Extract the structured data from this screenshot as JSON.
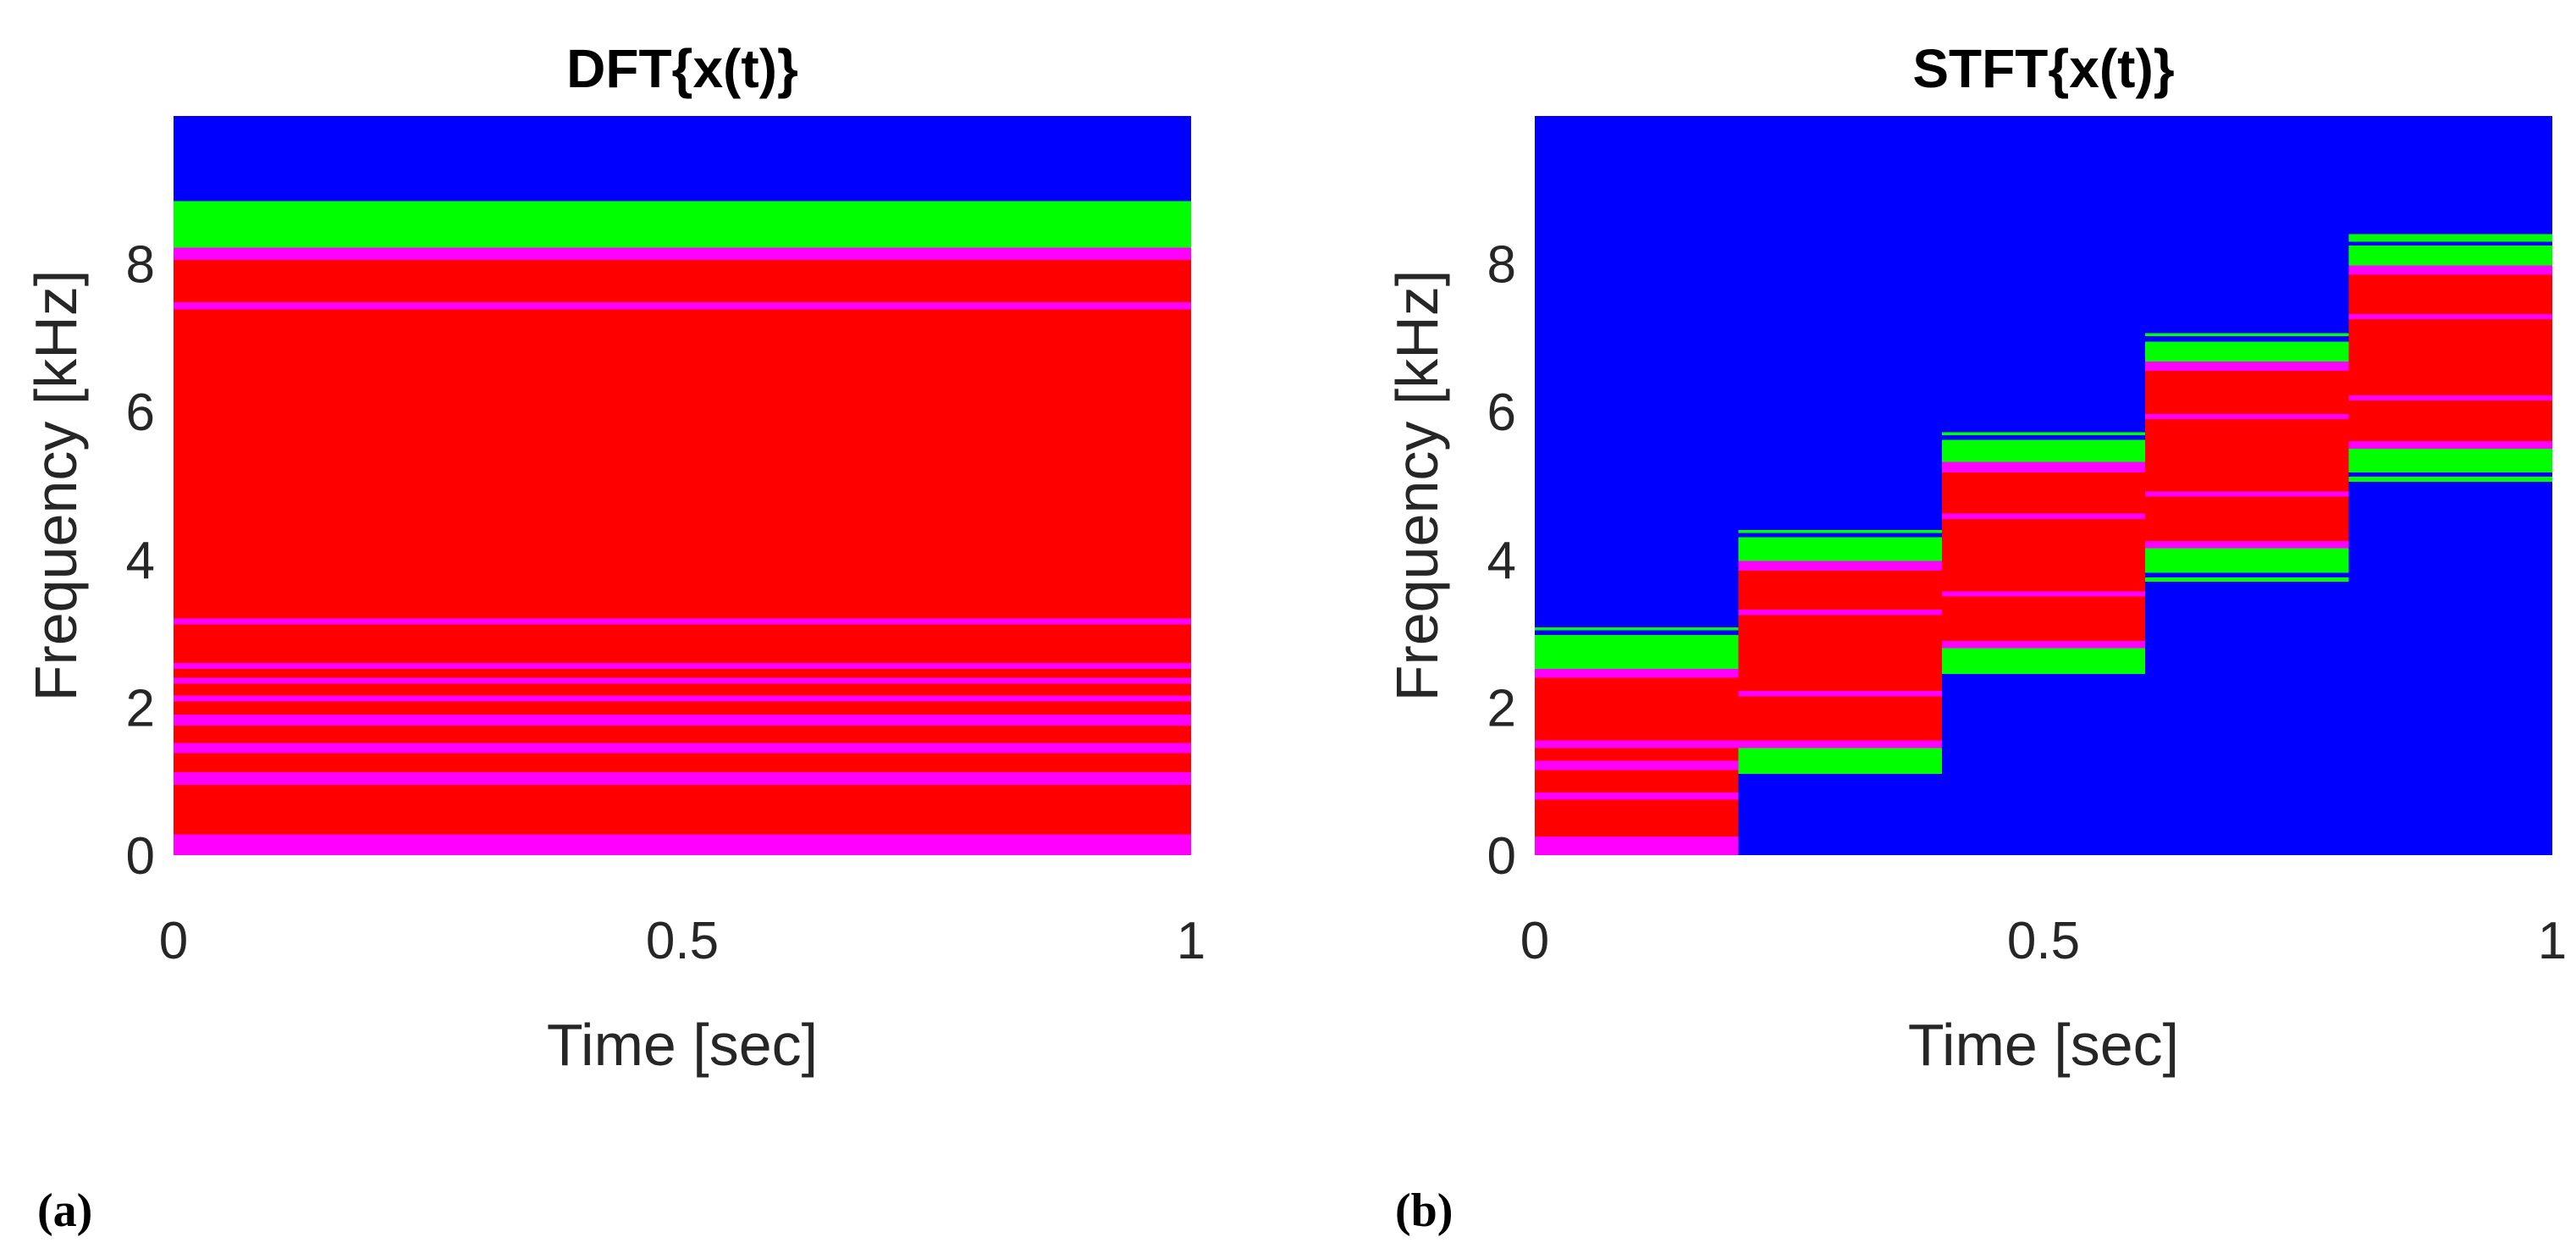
{
  "panels": [
    {
      "label": "(a)",
      "chart_data": {
        "type": "heatmap",
        "title": "DFT{x(t)}",
        "xlabel": "Time [sec]",
        "ylabel": "Frequency [kHz]",
        "xlim": [
          0,
          1
        ],
        "ylim": [
          0,
          10
        ],
        "xticks": [
          0,
          0.5,
          1
        ],
        "xtick_labels": [
          "0",
          "0.5",
          "1"
        ],
        "yticks": [
          0,
          2,
          4,
          6,
          8
        ],
        "ytick_labels": [
          "0",
          "2",
          "4",
          "6",
          "8"
        ],
        "background_color": "#0000ff",
        "colors": {
          "blue": "#0000ff",
          "green": "#00ff00",
          "red": "#ff0000",
          "magenta": "#ff00ff"
        },
        "cells": [
          {
            "t0": 0,
            "t1": 1,
            "f0": 0,
            "f1": 0.28,
            "color": "magenta"
          },
          {
            "t0": 0,
            "t1": 1,
            "f0": 0.28,
            "f1": 0.95,
            "color": "red"
          },
          {
            "t0": 0,
            "t1": 1,
            "f0": 0.95,
            "f1": 1.12,
            "color": "magenta"
          },
          {
            "t0": 0,
            "t1": 1,
            "f0": 1.12,
            "f1": 1.38,
            "color": "red"
          },
          {
            "t0": 0,
            "t1": 1,
            "f0": 1.38,
            "f1": 1.52,
            "color": "magenta"
          },
          {
            "t0": 0,
            "t1": 1,
            "f0": 1.52,
            "f1": 1.75,
            "color": "red"
          },
          {
            "t0": 0,
            "t1": 1,
            "f0": 1.75,
            "f1": 1.9,
            "color": "magenta"
          },
          {
            "t0": 0,
            "t1": 1,
            "f0": 1.9,
            "f1": 2.08,
            "color": "red"
          },
          {
            "t0": 0,
            "t1": 1,
            "f0": 2.08,
            "f1": 2.16,
            "color": "magenta"
          },
          {
            "t0": 0,
            "t1": 1,
            "f0": 2.16,
            "f1": 2.32,
            "color": "red"
          },
          {
            "t0": 0,
            "t1": 1,
            "f0": 2.32,
            "f1": 2.4,
            "color": "magenta"
          },
          {
            "t0": 0,
            "t1": 1,
            "f0": 2.4,
            "f1": 2.52,
            "color": "red"
          },
          {
            "t0": 0,
            "t1": 1,
            "f0": 2.52,
            "f1": 2.6,
            "color": "magenta"
          },
          {
            "t0": 0,
            "t1": 1,
            "f0": 2.6,
            "f1": 3.12,
            "color": "red"
          },
          {
            "t0": 0,
            "t1": 1,
            "f0": 3.12,
            "f1": 3.2,
            "color": "magenta"
          },
          {
            "t0": 0,
            "t1": 1,
            "f0": 3.2,
            "f1": 7.38,
            "color": "red"
          },
          {
            "t0": 0,
            "t1": 1,
            "f0": 7.38,
            "f1": 7.48,
            "color": "magenta"
          },
          {
            "t0": 0,
            "t1": 1,
            "f0": 7.48,
            "f1": 8.05,
            "color": "red"
          },
          {
            "t0": 0,
            "t1": 1,
            "f0": 8.05,
            "f1": 8.22,
            "color": "magenta"
          },
          {
            "t0": 0,
            "t1": 1,
            "f0": 8.22,
            "f1": 8.85,
            "color": "green"
          }
        ]
      }
    },
    {
      "label": "(b)",
      "chart_data": {
        "type": "heatmap",
        "title": "STFT{x(t)}",
        "xlabel": "Time [sec]",
        "ylabel": "Frequency [kHz]",
        "xlim": [
          0,
          1
        ],
        "ylim": [
          0,
          10
        ],
        "xticks": [
          0,
          0.5,
          1
        ],
        "xtick_labels": [
          "0",
          "0.5",
          "1"
        ],
        "yticks": [
          0,
          2,
          4,
          6,
          8
        ],
        "ytick_labels": [
          "0",
          "2",
          "4",
          "6",
          "8"
        ],
        "background_color": "#0000ff",
        "colors": {
          "blue": "#0000ff",
          "green": "#00ff00",
          "red": "#ff0000",
          "magenta": "#ff00ff"
        },
        "cells": [
          {
            "t0": 0,
            "t1": 0.2,
            "f0": 0,
            "f1": 0.25,
            "color": "magenta"
          },
          {
            "t0": 0,
            "t1": 0.2,
            "f0": 0.25,
            "f1": 0.75,
            "color": "red"
          },
          {
            "t0": 0,
            "t1": 0.2,
            "f0": 0.75,
            "f1": 0.85,
            "color": "magenta"
          },
          {
            "t0": 0,
            "t1": 0.2,
            "f0": 0.85,
            "f1": 1.15,
            "color": "red"
          },
          {
            "t0": 0,
            "t1": 0.2,
            "f0": 1.15,
            "f1": 1.28,
            "color": "magenta"
          },
          {
            "t0": 0,
            "t1": 0.2,
            "f0": 1.28,
            "f1": 1.45,
            "color": "red"
          },
          {
            "t0": 0,
            "t1": 0.2,
            "f0": 1.45,
            "f1": 1.55,
            "color": "magenta"
          },
          {
            "t0": 0,
            "t1": 0.2,
            "f0": 1.55,
            "f1": 2.4,
            "color": "red"
          },
          {
            "t0": 0,
            "t1": 0.2,
            "f0": 2.4,
            "f1": 2.52,
            "color": "magenta"
          },
          {
            "t0": 0,
            "t1": 0.2,
            "f0": 2.52,
            "f1": 2.98,
            "color": "green"
          },
          {
            "t0": 0,
            "t1": 0.2,
            "f0": 3.04,
            "f1": 3.08,
            "color": "green"
          },
          {
            "t0": 0.2,
            "t1": 0.4,
            "f0": 1.1,
            "f1": 1.45,
            "color": "green"
          },
          {
            "t0": 0.2,
            "t1": 0.4,
            "f0": 1.45,
            "f1": 1.55,
            "color": "magenta"
          },
          {
            "t0": 0.2,
            "t1": 0.4,
            "f0": 1.55,
            "f1": 2.15,
            "color": "red"
          },
          {
            "t0": 0.2,
            "t1": 0.4,
            "f0": 2.15,
            "f1": 2.22,
            "color": "magenta"
          },
          {
            "t0": 0.2,
            "t1": 0.4,
            "f0": 2.22,
            "f1": 3.25,
            "color": "red"
          },
          {
            "t0": 0.2,
            "t1": 0.4,
            "f0": 3.25,
            "f1": 3.32,
            "color": "magenta"
          },
          {
            "t0": 0.2,
            "t1": 0.4,
            "f0": 3.32,
            "f1": 3.85,
            "color": "red"
          },
          {
            "t0": 0.2,
            "t1": 0.4,
            "f0": 3.85,
            "f1": 3.98,
            "color": "magenta"
          },
          {
            "t0": 0.2,
            "t1": 0.4,
            "f0": 3.98,
            "f1": 4.3,
            "color": "green"
          },
          {
            "t0": 0.2,
            "t1": 0.4,
            "f0": 4.36,
            "f1": 4.4,
            "color": "green"
          },
          {
            "t0": 0.4,
            "t1": 0.6,
            "f0": 2.45,
            "f1": 2.8,
            "color": "green"
          },
          {
            "t0": 0.4,
            "t1": 0.6,
            "f0": 2.8,
            "f1": 2.9,
            "color": "magenta"
          },
          {
            "t0": 0.4,
            "t1": 0.6,
            "f0": 2.9,
            "f1": 3.5,
            "color": "red"
          },
          {
            "t0": 0.4,
            "t1": 0.6,
            "f0": 3.5,
            "f1": 3.57,
            "color": "magenta"
          },
          {
            "t0": 0.4,
            "t1": 0.6,
            "f0": 3.57,
            "f1": 4.55,
            "color": "red"
          },
          {
            "t0": 0.4,
            "t1": 0.6,
            "f0": 4.55,
            "f1": 4.62,
            "color": "magenta"
          },
          {
            "t0": 0.4,
            "t1": 0.6,
            "f0": 4.62,
            "f1": 5.18,
            "color": "red"
          },
          {
            "t0": 0.4,
            "t1": 0.6,
            "f0": 5.18,
            "f1": 5.32,
            "color": "magenta"
          },
          {
            "t0": 0.4,
            "t1": 0.6,
            "f0": 5.32,
            "f1": 5.62,
            "color": "green"
          },
          {
            "t0": 0.4,
            "t1": 0.6,
            "f0": 5.68,
            "f1": 5.72,
            "color": "green"
          },
          {
            "t0": 0.6,
            "t1": 0.8,
            "f0": 3.7,
            "f1": 3.76,
            "color": "green"
          },
          {
            "t0": 0.6,
            "t1": 0.8,
            "f0": 3.82,
            "f1": 4.15,
            "color": "green"
          },
          {
            "t0": 0.6,
            "t1": 0.8,
            "f0": 4.15,
            "f1": 4.25,
            "color": "magenta"
          },
          {
            "t0": 0.6,
            "t1": 0.8,
            "f0": 4.25,
            "f1": 4.85,
            "color": "red"
          },
          {
            "t0": 0.6,
            "t1": 0.8,
            "f0": 4.85,
            "f1": 4.92,
            "color": "magenta"
          },
          {
            "t0": 0.6,
            "t1": 0.8,
            "f0": 4.92,
            "f1": 5.9,
            "color": "red"
          },
          {
            "t0": 0.6,
            "t1": 0.8,
            "f0": 5.9,
            "f1": 5.97,
            "color": "magenta"
          },
          {
            "t0": 0.6,
            "t1": 0.8,
            "f0": 5.97,
            "f1": 6.55,
            "color": "red"
          },
          {
            "t0": 0.6,
            "t1": 0.8,
            "f0": 6.55,
            "f1": 6.68,
            "color": "magenta"
          },
          {
            "t0": 0.6,
            "t1": 0.8,
            "f0": 6.68,
            "f1": 6.95,
            "color": "green"
          },
          {
            "t0": 0.6,
            "t1": 0.8,
            "f0": 7.02,
            "f1": 7.06,
            "color": "green"
          },
          {
            "t0": 0.8,
            "t1": 1,
            "f0": 5.05,
            "f1": 5.12,
            "color": "green"
          },
          {
            "t0": 0.8,
            "t1": 1,
            "f0": 5.18,
            "f1": 5.5,
            "color": "green"
          },
          {
            "t0": 0.8,
            "t1": 1,
            "f0": 5.5,
            "f1": 5.6,
            "color": "magenta"
          },
          {
            "t0": 0.8,
            "t1": 1,
            "f0": 5.6,
            "f1": 6.15,
            "color": "red"
          },
          {
            "t0": 0.8,
            "t1": 1,
            "f0": 6.15,
            "f1": 6.22,
            "color": "magenta"
          },
          {
            "t0": 0.8,
            "t1": 1,
            "f0": 6.22,
            "f1": 7.25,
            "color": "red"
          },
          {
            "t0": 0.8,
            "t1": 1,
            "f0": 7.25,
            "f1": 7.32,
            "color": "magenta"
          },
          {
            "t0": 0.8,
            "t1": 1,
            "f0": 7.32,
            "f1": 7.85,
            "color": "red"
          },
          {
            "t0": 0.8,
            "t1": 1,
            "f0": 7.85,
            "f1": 7.98,
            "color": "magenta"
          },
          {
            "t0": 0.8,
            "t1": 1,
            "f0": 7.98,
            "f1": 8.25,
            "color": "green"
          },
          {
            "t0": 0.8,
            "t1": 1,
            "f0": 8.3,
            "f1": 8.4,
            "color": "green"
          }
        ]
      }
    }
  ]
}
